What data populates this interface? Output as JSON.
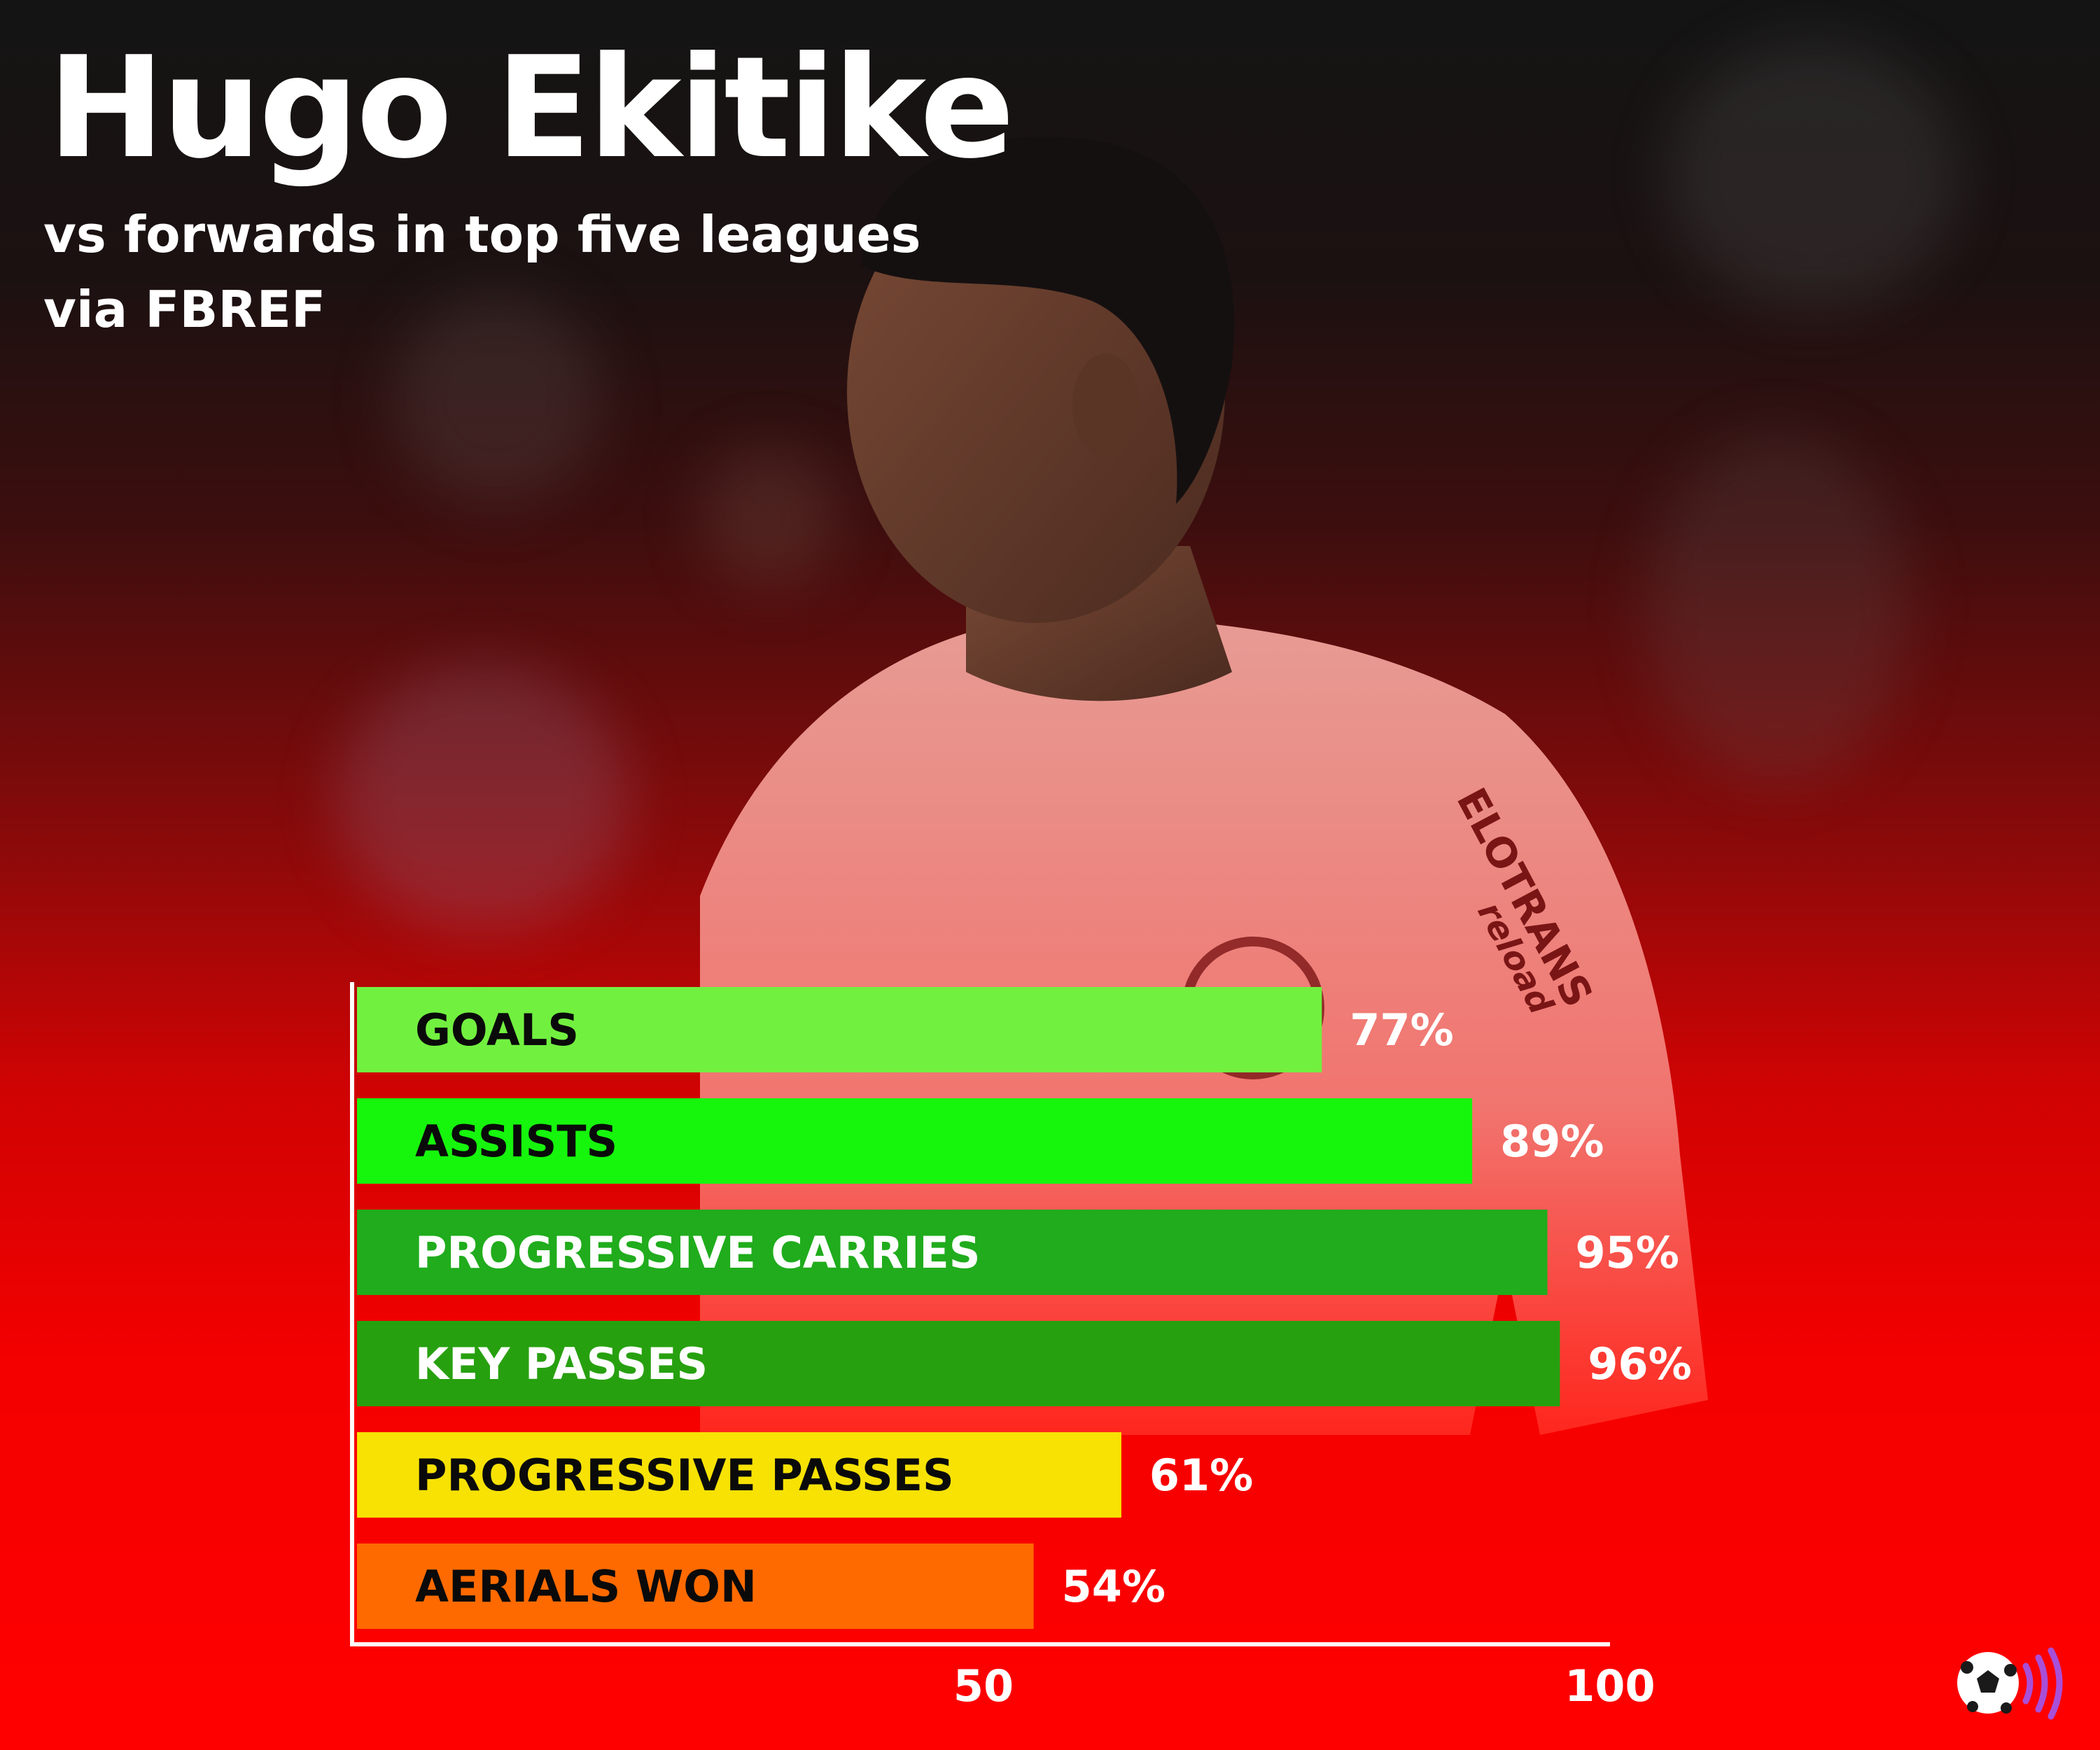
{
  "header": {
    "title": "Hugo Ekitike",
    "subtitle": "vs forwards in top five leagues",
    "source": "via FBREF"
  },
  "colors": {
    "background_top": "#141414",
    "background_bottom": "#ff0000",
    "axis": "#ffffff"
  },
  "icons": [
    "football-icon",
    "sound-waves-icon"
  ],
  "chart_data": {
    "type": "bar",
    "orientation": "horizontal",
    "categories": [
      "GOALS",
      "ASSISTS",
      "PROGRESSIVE CARRIES",
      "KEY PASSES",
      "PROGRESSIVE PASSES",
      "AERIALS WON"
    ],
    "values": [
      77,
      89,
      95,
      96,
      61,
      54
    ],
    "value_labels": [
      "77%",
      "89%",
      "95%",
      "96%",
      "61%",
      "54%"
    ],
    "bar_colors": [
      "#72f040",
      "#16f60d",
      "#20ac1c",
      "#27a00f",
      "#f7e204",
      "#ff6a00"
    ],
    "label_colors": [
      "#0a0a0a",
      "#0a0a0a",
      "#ffffff",
      "#ffffff",
      "#0a0a0a",
      "#0a0a0a"
    ],
    "xlim": [
      0,
      100
    ],
    "ticks": [
      50,
      100
    ],
    "tick_labels": [
      "50",
      "100"
    ],
    "grid": false,
    "legend": "none"
  }
}
